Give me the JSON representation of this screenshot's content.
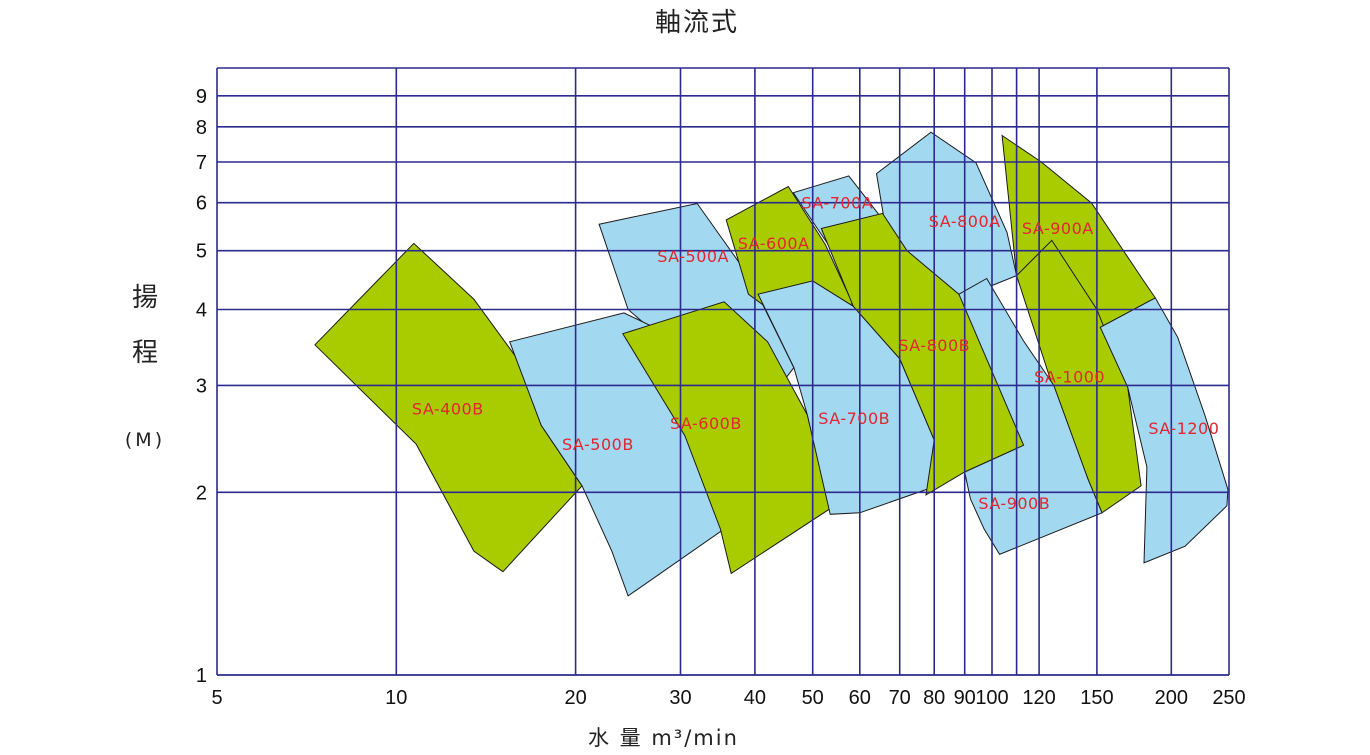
{
  "chart_data": {
    "type": "area",
    "title": "軸流式",
    "ylabel": [
      "揚",
      "程",
      "(M)"
    ],
    "xlabel": "水 量 m³/min",
    "x_scale": "log",
    "y_scale": "log",
    "xlim": [
      5,
      250
    ],
    "ylim": [
      1,
      10
    ],
    "x_ticks": [
      5,
      10,
      20,
      30,
      40,
      50,
      60,
      70,
      80,
      90,
      100,
      120,
      150,
      200,
      250
    ],
    "x_tick_labels": [
      "5",
      "10",
      "20",
      "30",
      "40",
      "50",
      "60",
      "70",
      "80",
      "90",
      "100",
      "120",
      "150",
      "200",
      "250"
    ],
    "x_gridlines": [
      10,
      20,
      30,
      40,
      50,
      60,
      70,
      80,
      90,
      100,
      110,
      120,
      150,
      200,
      250
    ],
    "y_ticks": [
      1,
      2,
      3,
      4,
      5,
      6,
      7,
      8,
      9
    ],
    "y_tick_labels": [
      "1",
      "2",
      "3",
      "4",
      "5",
      "6",
      "7",
      "8",
      "9"
    ],
    "y_gridlines": [
      1,
      2,
      3,
      4,
      5,
      6,
      7,
      8,
      9,
      10
    ],
    "grid": true,
    "colors": {
      "green": "#a9cc00",
      "blue": "#a3d8f1",
      "grid": "#2c2a8c",
      "label": "#e0262e"
    },
    "series": [
      {
        "name": "SA-500A",
        "color": "blue",
        "label_at": [
          31.5,
          4.9
        ],
        "outline": [
          [
            21.9,
            5.53
          ],
          [
            32,
            5.98
          ],
          [
            39,
            4.55
          ],
          [
            46.5,
            3.21
          ],
          [
            40,
            2.65
          ],
          [
            24.5,
            4.0
          ]
        ]
      },
      {
        "name": "SA-700A",
        "color": "blue",
        "label_at": [
          55,
          6.0
        ],
        "outline": [
          [
            46.4,
            6.23
          ],
          [
            57.5,
            6.64
          ],
          [
            66,
            5.58
          ],
          [
            76,
            4.25
          ],
          [
            67,
            3.66
          ],
          [
            51.5,
            5.35
          ]
        ]
      },
      {
        "name": "SA-800A",
        "color": "blue",
        "label_at": [
          90,
          5.6
        ],
        "outline": [
          [
            64,
            6.7
          ],
          [
            79,
            7.84
          ],
          [
            94,
            6.98
          ],
          [
            106,
            5.36
          ],
          [
            110,
            4.55
          ],
          [
            92,
            4.24
          ],
          [
            76,
            4.25
          ],
          [
            66,
            5.58
          ]
        ]
      },
      {
        "name": "SA-600A",
        "color": "green",
        "label_at": [
          43,
          5.15
        ],
        "outline": [
          [
            35.8,
            5.62
          ],
          [
            45.5,
            6.38
          ],
          [
            52.5,
            5.12
          ],
          [
            58.3,
            4.1
          ],
          [
            50,
            3.55
          ],
          [
            39,
            4.24
          ]
        ]
      },
      {
        "name": "SA-900A",
        "color": "green",
        "label_at": [
          129,
          5.45
        ],
        "outline": [
          [
            104,
            7.74
          ],
          [
            121,
            7.0
          ],
          [
            147,
            5.99
          ],
          [
            180,
            4.45
          ],
          [
            188,
            4.18
          ],
          [
            152,
            3.74
          ],
          [
            130,
            3.6
          ],
          [
            110,
            4.55
          ]
        ]
      },
      {
        "name": "SA-400B",
        "color": "green",
        "label_at": [
          12.2,
          2.75
        ],
        "outline": [
          [
            7.3,
            3.5
          ],
          [
            10.7,
            5.14
          ],
          [
            13.5,
            4.16
          ],
          [
            16.4,
            3.2
          ],
          [
            17.5,
            2.58
          ],
          [
            20.5,
            2.05
          ],
          [
            15.1,
            1.48
          ],
          [
            13.5,
            1.6
          ],
          [
            10.8,
            2.4
          ]
        ]
      },
      {
        "name": "SA-500B",
        "color": "blue",
        "label_at": [
          21.8,
          2.4
        ],
        "outline": [
          [
            15.5,
            3.54
          ],
          [
            24.1,
            3.95
          ],
          [
            28.5,
            3.65
          ],
          [
            34.5,
            3.0
          ],
          [
            38.5,
            2.18
          ],
          [
            35.5,
            1.74
          ],
          [
            24.5,
            1.35
          ],
          [
            23,
            1.6
          ],
          [
            20.5,
            2.05
          ],
          [
            17.5,
            2.58
          ]
        ]
      },
      {
        "name": "SA-600B",
        "color": "green",
        "label_at": [
          33.1,
          2.6
        ],
        "outline": [
          [
            24,
            3.65
          ],
          [
            35.5,
            4.12
          ],
          [
            42,
            3.54
          ],
          [
            49,
            2.68
          ],
          [
            53.5,
            1.88
          ],
          [
            36.5,
            1.47
          ],
          [
            35,
            1.74
          ],
          [
            30.5,
            2.48
          ]
        ]
      },
      {
        "name": "SA-700B",
        "color": "blue",
        "label_at": [
          58.7,
          2.65
        ],
        "outline": [
          [
            40.5,
            4.24
          ],
          [
            50,
            4.46
          ],
          [
            58.5,
            4.05
          ],
          [
            70,
            3.32
          ],
          [
            80,
            2.44
          ],
          [
            82,
            2.06
          ],
          [
            60,
            1.85
          ],
          [
            53.5,
            1.84
          ],
          [
            49,
            2.68
          ],
          [
            46.5,
            3.21
          ]
        ]
      },
      {
        "name": "SA-800B",
        "color": "green",
        "label_at": [
          80,
          3.5
        ],
        "outline": [
          [
            51.7,
            5.44
          ],
          [
            65.5,
            5.76
          ],
          [
            72,
            5.0
          ],
          [
            88,
            4.24
          ],
          [
            110,
            3.0
          ],
          [
            113,
            2.39
          ],
          [
            90,
            2.16
          ],
          [
            77.5,
            1.98
          ],
          [
            80,
            2.44
          ],
          [
            70,
            3.32
          ],
          [
            58.5,
            4.05
          ]
        ]
      },
      {
        "name": "SA-1000",
        "color": "green",
        "label_at": [
          135,
          3.1
        ],
        "outline": [
          [
            110,
            4.55
          ],
          [
            126,
            5.2
          ],
          [
            150,
            4.0
          ],
          [
            169,
            2.98
          ],
          [
            178,
            2.05
          ],
          [
            153,
            1.85
          ],
          [
            145,
            2.1
          ],
          [
            130,
            2.75
          ]
        ]
      },
      {
        "name": "SA-900B",
        "color": "blue",
        "label_at": [
          109,
          1.92
        ],
        "outline": [
          [
            88,
            4.24
          ],
          [
            98,
            4.5
          ],
          [
            113,
            3.55
          ],
          [
            127,
            3.0
          ],
          [
            145,
            2.1
          ],
          [
            153,
            1.85
          ],
          [
            103,
            1.58
          ],
          [
            97,
            1.74
          ],
          [
            92,
            1.95
          ],
          [
            90,
            2.16
          ],
          [
            113,
            2.39
          ]
        ]
      },
      {
        "name": "SA-1200",
        "color": "blue",
        "label_at": [
          210,
          2.55
        ],
        "outline": [
          [
            152,
            3.74
          ],
          [
            188,
            4.18
          ],
          [
            205,
            3.6
          ],
          [
            228,
            2.67
          ],
          [
            249,
            2.02
          ],
          [
            248,
            1.9
          ],
          [
            211,
            1.63
          ],
          [
            180,
            1.53
          ],
          [
            182,
            2.2
          ],
          [
            169,
            2.98
          ]
        ]
      }
    ]
  }
}
